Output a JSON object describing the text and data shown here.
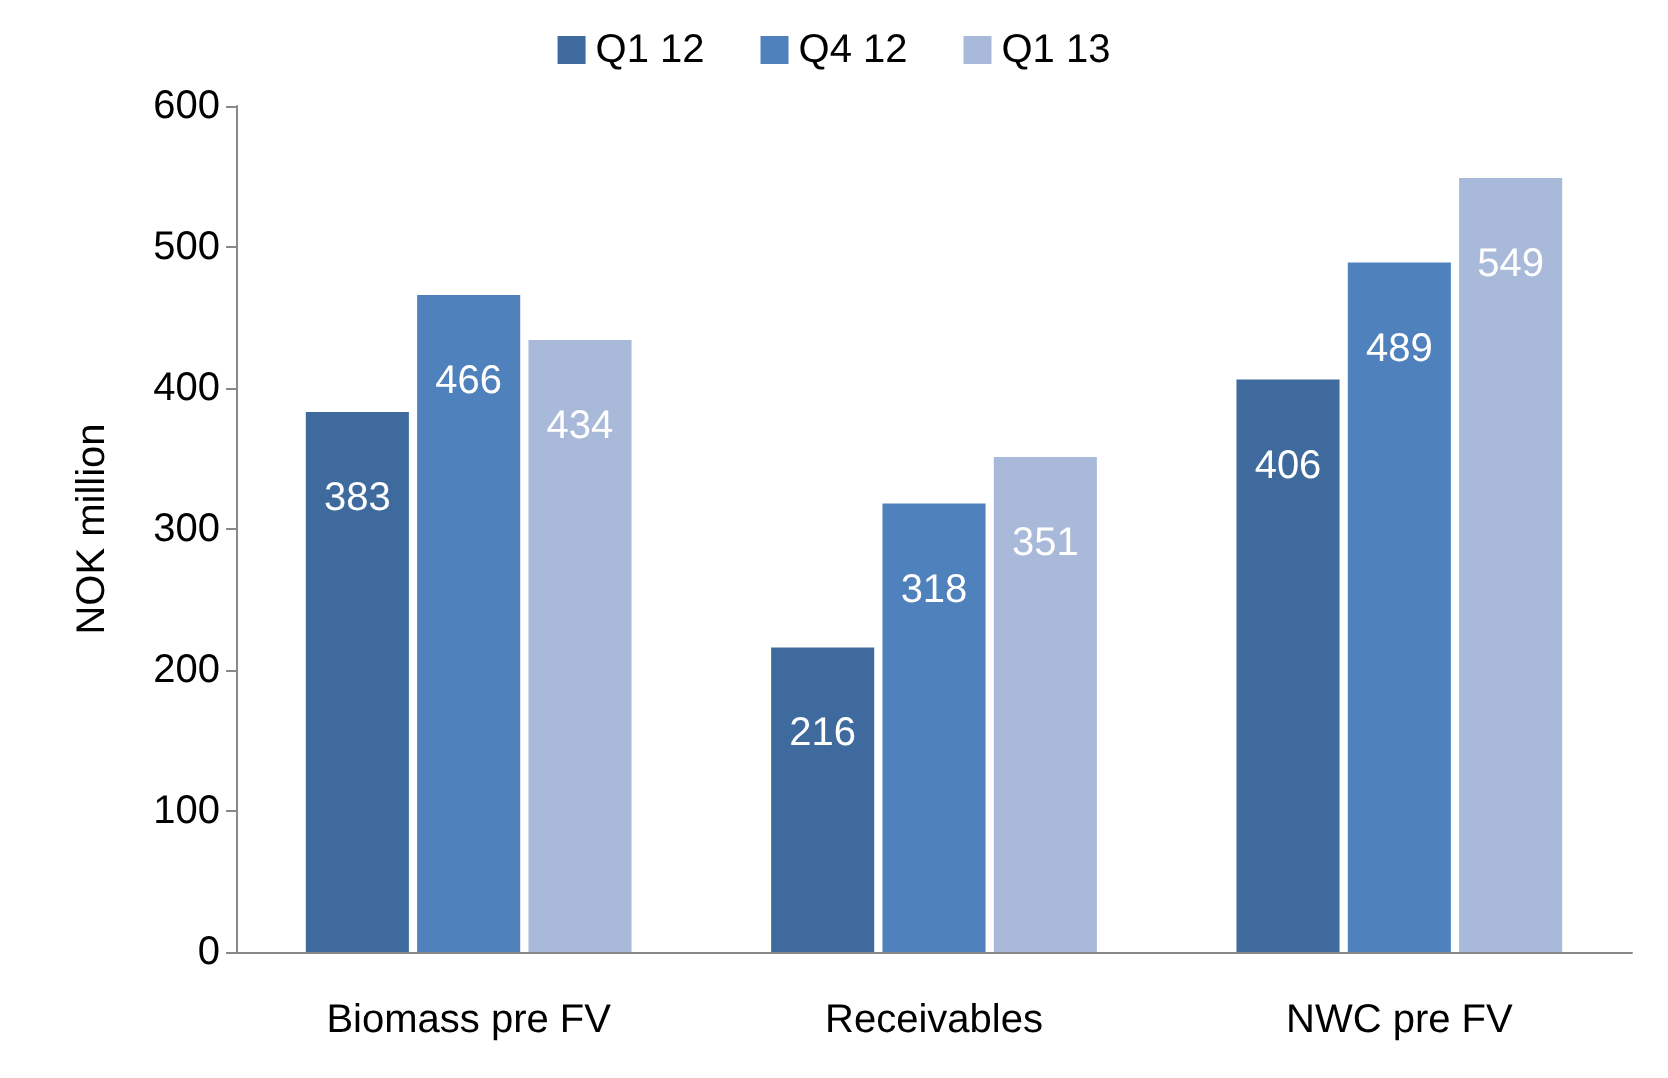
{
  "chart_data": {
    "type": "bar",
    "ylabel": "NOK million",
    "categories": [
      "Biomass pre FV",
      "Receivables",
      "NWC pre FV"
    ],
    "series": [
      {
        "name": "Q1 12",
        "color": "#3f6a9e",
        "values": [
          383,
          216,
          406
        ]
      },
      {
        "name": "Q4 12",
        "color": "#4f81bd",
        "values": [
          466,
          318,
          489
        ]
      },
      {
        "name": "Q1 13",
        "color": "#a9b9d9",
        "values": [
          434,
          351,
          549
        ]
      }
    ],
    "ylim": [
      0,
      600
    ],
    "yticks": [
      0,
      100,
      200,
      300,
      400,
      500,
      600
    ],
    "grid": false,
    "legend": "top",
    "data_labels": true
  }
}
